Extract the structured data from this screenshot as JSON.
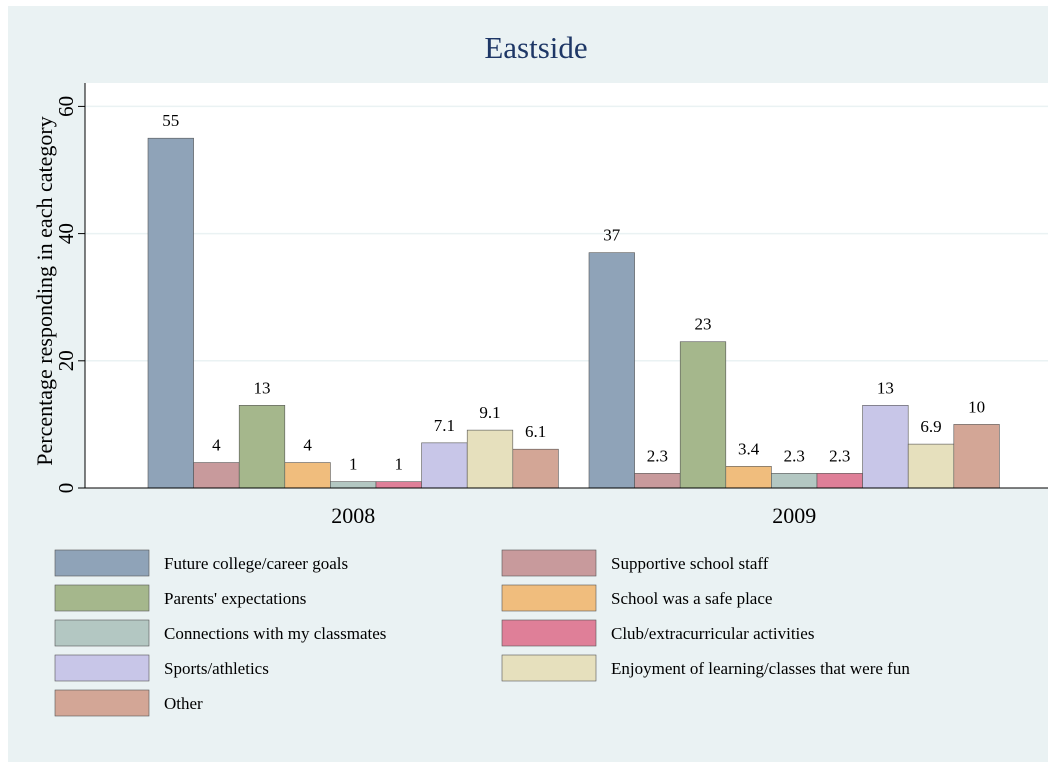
{
  "chart_data": {
    "type": "bar",
    "title": "Eastside",
    "xlabel": "",
    "ylabel": "Percentage responding in each category",
    "ylim": [
      0,
      60
    ],
    "yticks": [
      0,
      20,
      40,
      60
    ],
    "grid": true,
    "legend_position": "bottom",
    "categories": [
      "2008",
      "2009"
    ],
    "series": [
      {
        "name": "Future college/career goals",
        "color": "#8fa3b8",
        "values": [
          55,
          37
        ],
        "labels": [
          "55",
          "37"
        ]
      },
      {
        "name": "Supportive school staff",
        "color": "#c89a9c",
        "values": [
          4,
          2.3
        ],
        "labels": [
          "4",
          "2.3"
        ]
      },
      {
        "name": "Parents' expectations",
        "color": "#a5b78c",
        "values": [
          13,
          23
        ],
        "labels": [
          "13",
          "23"
        ]
      },
      {
        "name": "School was a safe place",
        "color": "#f0bd7d",
        "values": [
          4,
          3.4
        ],
        "labels": [
          "4",
          "3.4"
        ]
      },
      {
        "name": "Connections with my classmates",
        "color": "#b3c7c2",
        "values": [
          1,
          2.3
        ],
        "labels": [
          "1",
          "2.3"
        ]
      },
      {
        "name": "Club/extracurricular activities",
        "color": "#df7f98",
        "values": [
          1,
          2.3
        ],
        "labels": [
          "1",
          "2.3"
        ]
      },
      {
        "name": "Sports/athletics",
        "color": "#c8c6e8",
        "values": [
          7.1,
          13
        ],
        "labels": [
          "7.1",
          "13"
        ]
      },
      {
        "name": "Enjoyment of learning/classes that were fun",
        "color": "#e6e0bd",
        "values": [
          9.1,
          6.9
        ],
        "labels": [
          "9.1",
          "6.9"
        ]
      },
      {
        "name": "Other",
        "color": "#d3a696",
        "values": [
          6.1,
          10
        ],
        "labels": [
          "6.1",
          "10"
        ]
      }
    ]
  }
}
